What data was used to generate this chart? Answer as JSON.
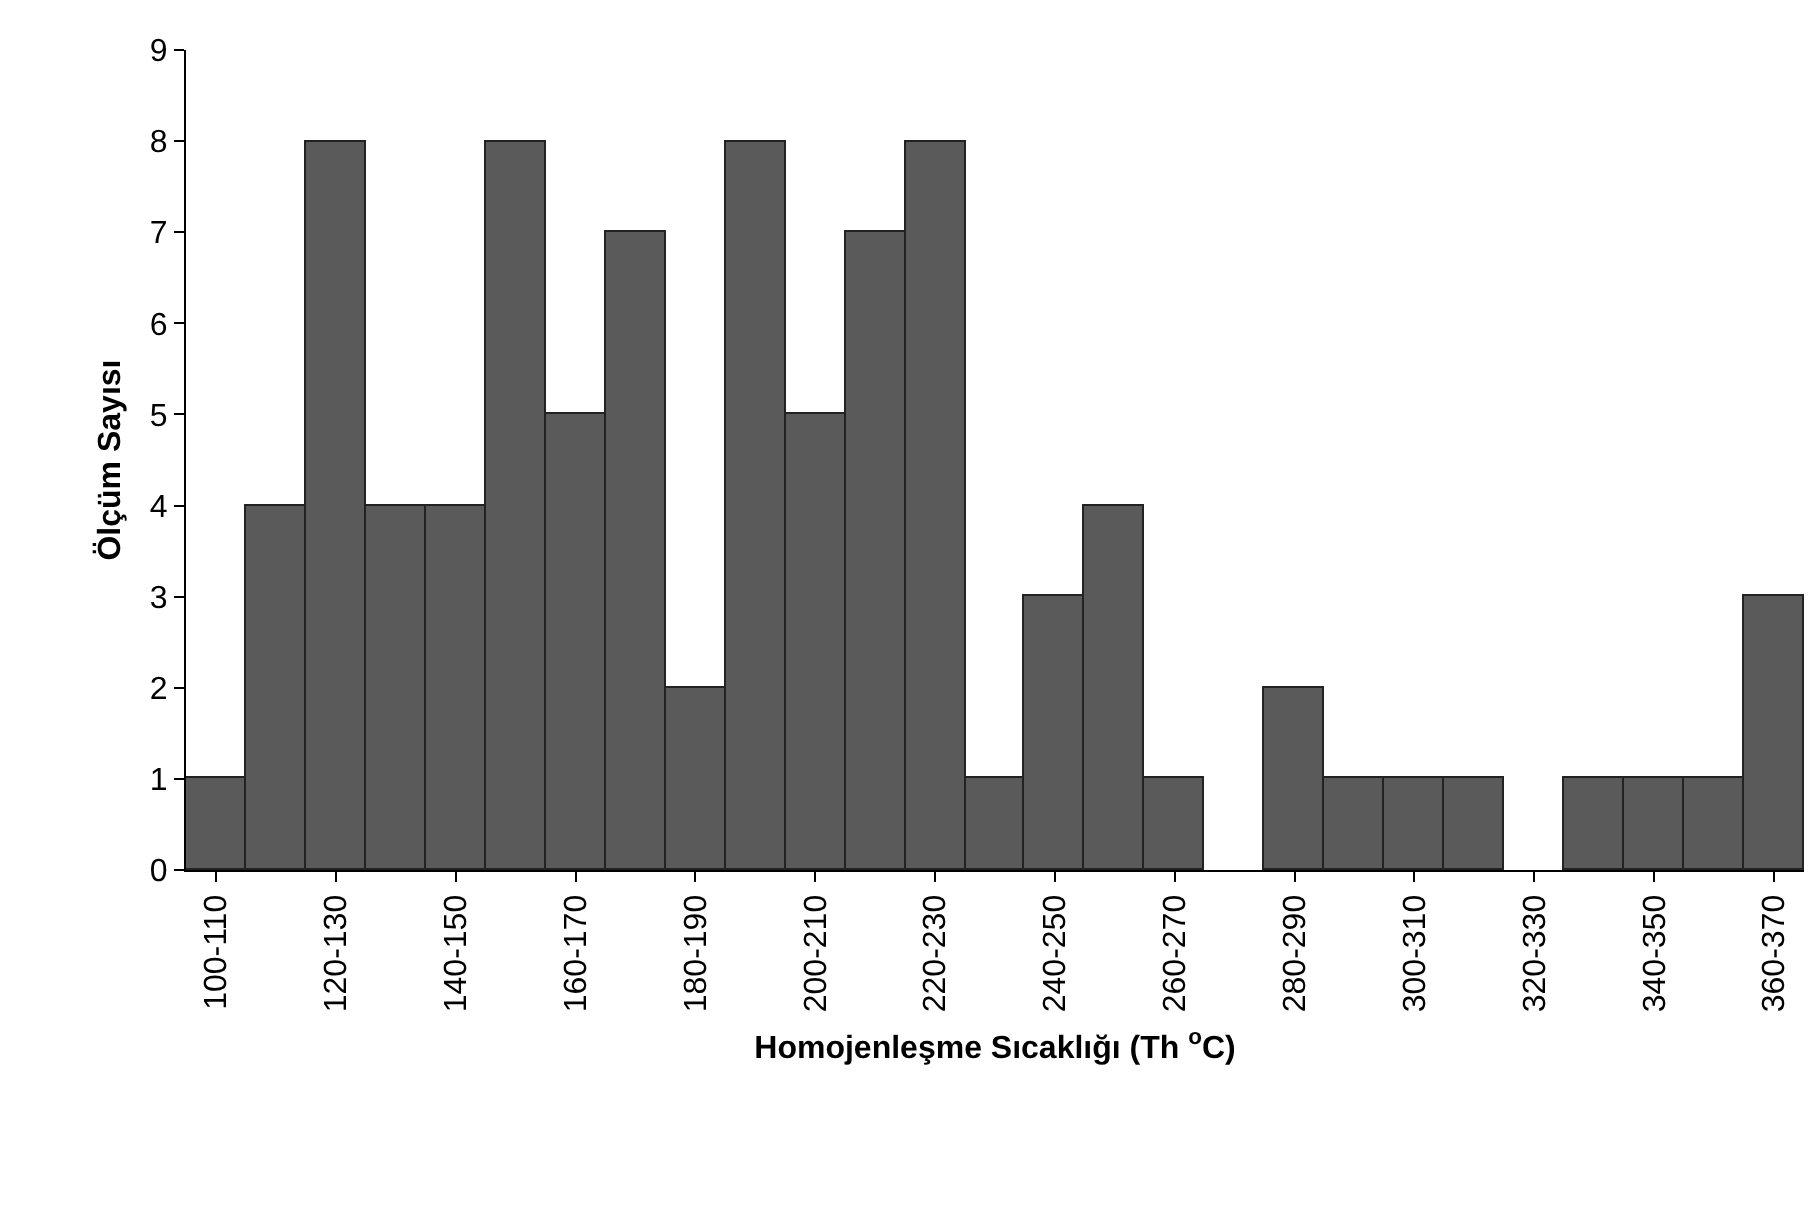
{
  "chart_data": {
    "type": "bar",
    "xlabel": "Homojenleşme Sıcaklığı (Th $^{o}$C)",
    "ylabel": "Ölçüm Sayısı",
    "categories": [
      "100-110",
      null,
      "120-130",
      null,
      "140-150",
      null,
      "160-170",
      null,
      "180-190",
      null,
      "200-210",
      null,
      "220-230",
      null,
      "240-250",
      null,
      "260-270",
      null,
      "280-290",
      null,
      "300-310",
      null,
      "320-330",
      null,
      "340-350",
      null,
      "360-370"
    ],
    "values": [
      1,
      4,
      8,
      4,
      4,
      8,
      5,
      7,
      2,
      8,
      5,
      7,
      8,
      1,
      3,
      4,
      1,
      0,
      2,
      1,
      1,
      1,
      0,
      1,
      1,
      1,
      3
    ],
    "color": "#5a5a5a",
    "ylim": [
      0,
      9
    ],
    "yticks": [
      0,
      1,
      2,
      3,
      4,
      5,
      6,
      7,
      8,
      9
    ],
    "grid": false
  }
}
